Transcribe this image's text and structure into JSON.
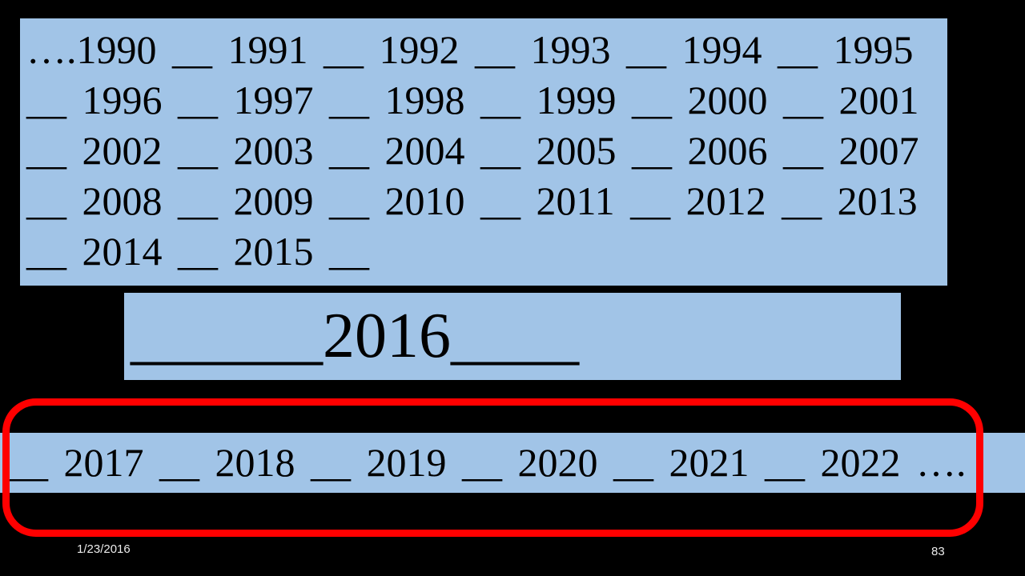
{
  "slide": {
    "colors": {
      "background": "#000000",
      "box_fill": "#A1C4E7",
      "slide_text": "#000000",
      "highlight_outline": "#FF0000",
      "footer_text": "#ECECEC"
    },
    "top_box": {
      "lines": [
        "….1990 __ 1991 __ 1992 __ 1993 __ 1994 __ 1995",
        "__ 1996 __ 1997 __ 1998 __ 1999 __ 2000 __ 2001",
        "__ 2002 __ 2003 __ 2004 __ 2005 __ 2006 __ 2007",
        "__ 2008 __ 2009 __ 2010 __ 2011 __ 2012 __ 2013",
        "__ 2014 __ 2015 __"
      ]
    },
    "middle_box": {
      "text": "______2016____"
    },
    "bottom_strip": {
      "text": "__ 2017 __ 2018 __ 2019 __ 2020 __ 2021 __ 2022 …."
    },
    "footer": {
      "date": "1/23/2016",
      "slide_number": "83"
    }
  }
}
